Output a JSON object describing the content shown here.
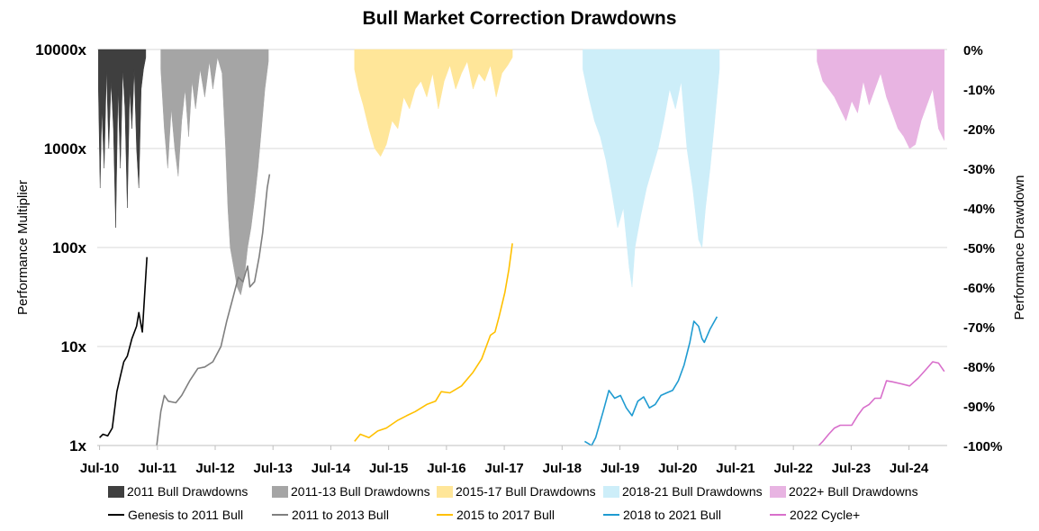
{
  "chart_data": {
    "type": "line",
    "title": "Bull Market Correction Drawdowns",
    "ylabel_left": "Performance Multiplier",
    "ylabel_right": "Performance Drawdown",
    "y_left_scale": "log",
    "y_left_range": [
      1,
      10000
    ],
    "y_left_ticks": [
      "10000x",
      "1000x",
      "100x",
      "10x",
      "1x"
    ],
    "y_right_range": [
      -100,
      0
    ],
    "y_right_ticks": [
      "0%",
      "-10%",
      "-20%",
      "-30%",
      "-40%",
      "-50%",
      "-60%",
      "-70%",
      "-80%",
      "-90%",
      "-100%"
    ],
    "x_tick_labels": [
      "Jul-10",
      "Jul-11",
      "Jul-12",
      "Jul-13",
      "Jul-14",
      "Jul-15",
      "Jul-16",
      "Jul-17",
      "Jul-18",
      "Jul-19",
      "Jul-20",
      "Jul-21",
      "Jul-22",
      "Jul-23",
      "Jul-24"
    ],
    "x_range": [
      2010.5,
      2025.2
    ],
    "line_series": [
      {
        "name": "Genesis to 2011 Bull",
        "color": "#000000",
        "points": [
          [
            2010.54,
            1.2
          ],
          [
            2010.6,
            1.3
          ],
          [
            2010.68,
            1.25
          ],
          [
            2010.76,
            1.5
          ],
          [
            2010.84,
            3.5
          ],
          [
            2010.9,
            5
          ],
          [
            2010.96,
            7
          ],
          [
            2011.02,
            8
          ],
          [
            2011.1,
            12
          ],
          [
            2011.18,
            16
          ],
          [
            2011.22,
            22
          ],
          [
            2011.28,
            14
          ],
          [
            2011.36,
            80
          ]
        ]
      },
      {
        "name": "2011 to 2013 Bull",
        "color": "#7f7f7f",
        "points": [
          [
            2011.53,
            1
          ],
          [
            2011.6,
            2.2
          ],
          [
            2011.66,
            3.2
          ],
          [
            2011.73,
            2.8
          ],
          [
            2011.86,
            2.7
          ],
          [
            2011.96,
            3.2
          ],
          [
            2012.1,
            4.5
          ],
          [
            2012.24,
            6
          ],
          [
            2012.36,
            6.2
          ],
          [
            2012.5,
            7
          ],
          [
            2012.64,
            10
          ],
          [
            2012.74,
            18
          ],
          [
            2012.84,
            30
          ],
          [
            2012.94,
            50
          ],
          [
            2013.02,
            45
          ],
          [
            2013.1,
            65
          ],
          [
            2013.14,
            40
          ],
          [
            2013.22,
            45
          ],
          [
            2013.3,
            80
          ],
          [
            2013.36,
            140
          ],
          [
            2013.44,
            400
          ],
          [
            2013.48,
            550
          ]
        ]
      },
      {
        "name": "2015 to 2017 Bull",
        "color": "#ffc000",
        "points": [
          [
            2014.95,
            1.1
          ],
          [
            2015.05,
            1.3
          ],
          [
            2015.2,
            1.2
          ],
          [
            2015.35,
            1.4
          ],
          [
            2015.5,
            1.5
          ],
          [
            2015.7,
            1.8
          ],
          [
            2015.85,
            2.0
          ],
          [
            2016.0,
            2.2
          ],
          [
            2016.2,
            2.6
          ],
          [
            2016.35,
            2.8
          ],
          [
            2016.45,
            3.5
          ],
          [
            2016.6,
            3.4
          ],
          [
            2016.8,
            4.0
          ],
          [
            2017.0,
            5.5
          ],
          [
            2017.15,
            7.5
          ],
          [
            2017.3,
            13
          ],
          [
            2017.38,
            14
          ],
          [
            2017.45,
            20
          ],
          [
            2017.55,
            35
          ],
          [
            2017.62,
            60
          ],
          [
            2017.68,
            110
          ]
        ]
      },
      {
        "name": "2018 to 2021 Bull",
        "color": "#1f9bd1",
        "points": [
          [
            2018.93,
            1.1
          ],
          [
            2019.05,
            1.0
          ],
          [
            2019.12,
            1.2
          ],
          [
            2019.25,
            2.2
          ],
          [
            2019.35,
            3.6
          ],
          [
            2019.45,
            3.0
          ],
          [
            2019.55,
            3.2
          ],
          [
            2019.65,
            2.4
          ],
          [
            2019.75,
            2.0
          ],
          [
            2019.85,
            2.8
          ],
          [
            2019.95,
            3.1
          ],
          [
            2020.05,
            2.4
          ],
          [
            2020.15,
            2.6
          ],
          [
            2020.25,
            3.2
          ],
          [
            2020.35,
            3.4
          ],
          [
            2020.45,
            3.6
          ],
          [
            2020.55,
            4.5
          ],
          [
            2020.65,
            6.5
          ],
          [
            2020.75,
            11
          ],
          [
            2020.82,
            18
          ],
          [
            2020.9,
            16
          ],
          [
            2020.96,
            12
          ],
          [
            2021.0,
            11
          ],
          [
            2021.1,
            15
          ],
          [
            2021.22,
            20
          ]
        ]
      },
      {
        "name": "2022 Cycle+",
        "color": "#d86fcb",
        "points": [
          [
            2022.98,
            1.0
          ],
          [
            2023.05,
            1.1
          ],
          [
            2023.15,
            1.3
          ],
          [
            2023.25,
            1.5
          ],
          [
            2023.35,
            1.6
          ],
          [
            2023.45,
            1.6
          ],
          [
            2023.55,
            1.6
          ],
          [
            2023.65,
            2.0
          ],
          [
            2023.75,
            2.4
          ],
          [
            2023.85,
            2.6
          ],
          [
            2023.95,
            3.0
          ],
          [
            2024.05,
            3.0
          ],
          [
            2024.15,
            4.5
          ],
          [
            2024.25,
            4.4
          ],
          [
            2024.4,
            4.2
          ],
          [
            2024.55,
            4.0
          ],
          [
            2024.7,
            4.8
          ],
          [
            2024.85,
            6.0
          ],
          [
            2024.95,
            7.0
          ],
          [
            2025.05,
            6.8
          ],
          [
            2025.15,
            5.6
          ]
        ]
      }
    ],
    "drawdown_series": [
      {
        "name": "2011 Bull Drawdowns",
        "color": "#3f3f3f",
        "points": [
          [
            2010.52,
            -10
          ],
          [
            2010.55,
            -35
          ],
          [
            2010.58,
            -15
          ],
          [
            2010.62,
            -30
          ],
          [
            2010.66,
            -5
          ],
          [
            2010.7,
            -25
          ],
          [
            2010.74,
            -8
          ],
          [
            2010.78,
            -20
          ],
          [
            2010.82,
            -45
          ],
          [
            2010.86,
            -10
          ],
          [
            2010.9,
            -30
          ],
          [
            2010.94,
            -5
          ],
          [
            2010.98,
            -15
          ],
          [
            2011.02,
            -40
          ],
          [
            2011.06,
            -10
          ],
          [
            2011.1,
            -20
          ],
          [
            2011.14,
            -5
          ],
          [
            2011.18,
            -25
          ],
          [
            2011.22,
            -35
          ],
          [
            2011.26,
            -10
          ],
          [
            2011.3,
            -5
          ],
          [
            2011.34,
            -2
          ]
        ]
      },
      {
        "name": "2011-13 Bull Drawdowns",
        "color": "#a5a5a5",
        "points": [
          [
            2011.6,
            -5
          ],
          [
            2011.66,
            -20
          ],
          [
            2011.72,
            -30
          ],
          [
            2011.78,
            -15
          ],
          [
            2011.84,
            -25
          ],
          [
            2011.9,
            -32
          ],
          [
            2011.96,
            -18
          ],
          [
            2012.02,
            -10
          ],
          [
            2012.08,
            -22
          ],
          [
            2012.14,
            -8
          ],
          [
            2012.2,
            -15
          ],
          [
            2012.28,
            -5
          ],
          [
            2012.36,
            -12
          ],
          [
            2012.44,
            -3
          ],
          [
            2012.5,
            -10
          ],
          [
            2012.58,
            -2
          ],
          [
            2012.66,
            -6
          ],
          [
            2012.72,
            -25
          ],
          [
            2012.76,
            -40
          ],
          [
            2012.8,
            -50
          ],
          [
            2012.86,
            -55
          ],
          [
            2012.92,
            -60
          ],
          [
            2012.98,
            -62
          ],
          [
            2013.04,
            -58
          ],
          [
            2013.1,
            -50
          ],
          [
            2013.16,
            -45
          ],
          [
            2013.22,
            -38
          ],
          [
            2013.28,
            -30
          ],
          [
            2013.34,
            -20
          ],
          [
            2013.4,
            -10
          ],
          [
            2013.46,
            -3
          ]
        ]
      },
      {
        "name": "2015-17 Bull Drawdowns",
        "color": "#ffe699",
        "points": [
          [
            2014.95,
            -5
          ],
          [
            2015.02,
            -10
          ],
          [
            2015.1,
            -14
          ],
          [
            2015.2,
            -20
          ],
          [
            2015.3,
            -25
          ],
          [
            2015.4,
            -27
          ],
          [
            2015.5,
            -24
          ],
          [
            2015.6,
            -18
          ],
          [
            2015.7,
            -20
          ],
          [
            2015.8,
            -12
          ],
          [
            2015.9,
            -15
          ],
          [
            2016.0,
            -10
          ],
          [
            2016.1,
            -8
          ],
          [
            2016.2,
            -12
          ],
          [
            2016.3,
            -6
          ],
          [
            2016.4,
            -15
          ],
          [
            2016.5,
            -8
          ],
          [
            2016.6,
            -4
          ],
          [
            2016.7,
            -10
          ],
          [
            2016.8,
            -6
          ],
          [
            2016.9,
            -3
          ],
          [
            2017.0,
            -10
          ],
          [
            2017.1,
            -6
          ],
          [
            2017.2,
            -8
          ],
          [
            2017.3,
            -4
          ],
          [
            2017.4,
            -12
          ],
          [
            2017.5,
            -6
          ],
          [
            2017.6,
            -4
          ],
          [
            2017.68,
            -2
          ]
        ]
      },
      {
        "name": "2018-21 Bull Drawdowns",
        "color": "#cdeef9",
        "points": [
          [
            2018.9,
            -5
          ],
          [
            2019.0,
            -12
          ],
          [
            2019.1,
            -18
          ],
          [
            2019.2,
            -22
          ],
          [
            2019.3,
            -28
          ],
          [
            2019.4,
            -36
          ],
          [
            2019.5,
            -45
          ],
          [
            2019.6,
            -40
          ],
          [
            2019.7,
            -55
          ],
          [
            2019.75,
            -60
          ],
          [
            2019.8,
            -50
          ],
          [
            2019.9,
            -42
          ],
          [
            2020.0,
            -35
          ],
          [
            2020.1,
            -30
          ],
          [
            2020.2,
            -25
          ],
          [
            2020.3,
            -18
          ],
          [
            2020.4,
            -10
          ],
          [
            2020.5,
            -15
          ],
          [
            2020.6,
            -8
          ],
          [
            2020.7,
            -25
          ],
          [
            2020.8,
            -35
          ],
          [
            2020.9,
            -48
          ],
          [
            2020.96,
            -50
          ],
          [
            2021.02,
            -40
          ],
          [
            2021.1,
            -30
          ],
          [
            2021.18,
            -18
          ],
          [
            2021.26,
            -5
          ]
        ]
      },
      {
        "name": "2022+ Bull Drawdowns",
        "color": "#e8b4e2",
        "points": [
          [
            2022.95,
            -3
          ],
          [
            2023.05,
            -8
          ],
          [
            2023.15,
            -10
          ],
          [
            2023.25,
            -12
          ],
          [
            2023.35,
            -15
          ],
          [
            2023.45,
            -18
          ],
          [
            2023.55,
            -13
          ],
          [
            2023.65,
            -16
          ],
          [
            2023.75,
            -8
          ],
          [
            2023.85,
            -14
          ],
          [
            2023.95,
            -10
          ],
          [
            2024.05,
            -6
          ],
          [
            2024.15,
            -12
          ],
          [
            2024.25,
            -16
          ],
          [
            2024.35,
            -20
          ],
          [
            2024.45,
            -22
          ],
          [
            2024.55,
            -25
          ],
          [
            2024.65,
            -24
          ],
          [
            2024.75,
            -18
          ],
          [
            2024.85,
            -14
          ],
          [
            2024.95,
            -10
          ],
          [
            2025.05,
            -20
          ],
          [
            2025.15,
            -23
          ]
        ]
      }
    ]
  },
  "legend": {
    "row1": [
      {
        "label": "2011 Bull Drawdowns",
        "color": "#3f3f3f"
      },
      {
        "label": "2011-13 Bull Drawdowns",
        "color": "#a5a5a5"
      },
      {
        "label": "2015-17 Bull Drawdowns",
        "color": "#ffe699"
      },
      {
        "label": "2018-21 Bull Drawdowns",
        "color": "#cdeef9"
      },
      {
        "label": "2022+ Bull Drawdowns",
        "color": "#e8b4e2"
      }
    ],
    "row2": [
      {
        "label": "Genesis to 2011 Bull",
        "color": "#000000"
      },
      {
        "label": "2011 to 2013 Bull",
        "color": "#7f7f7f"
      },
      {
        "label": "2015 to 2017 Bull",
        "color": "#ffc000"
      },
      {
        "label": "2018 to 2021 Bull",
        "color": "#1f9bd1"
      },
      {
        "label": "2022 Cycle+",
        "color": "#d86fcb"
      }
    ]
  }
}
